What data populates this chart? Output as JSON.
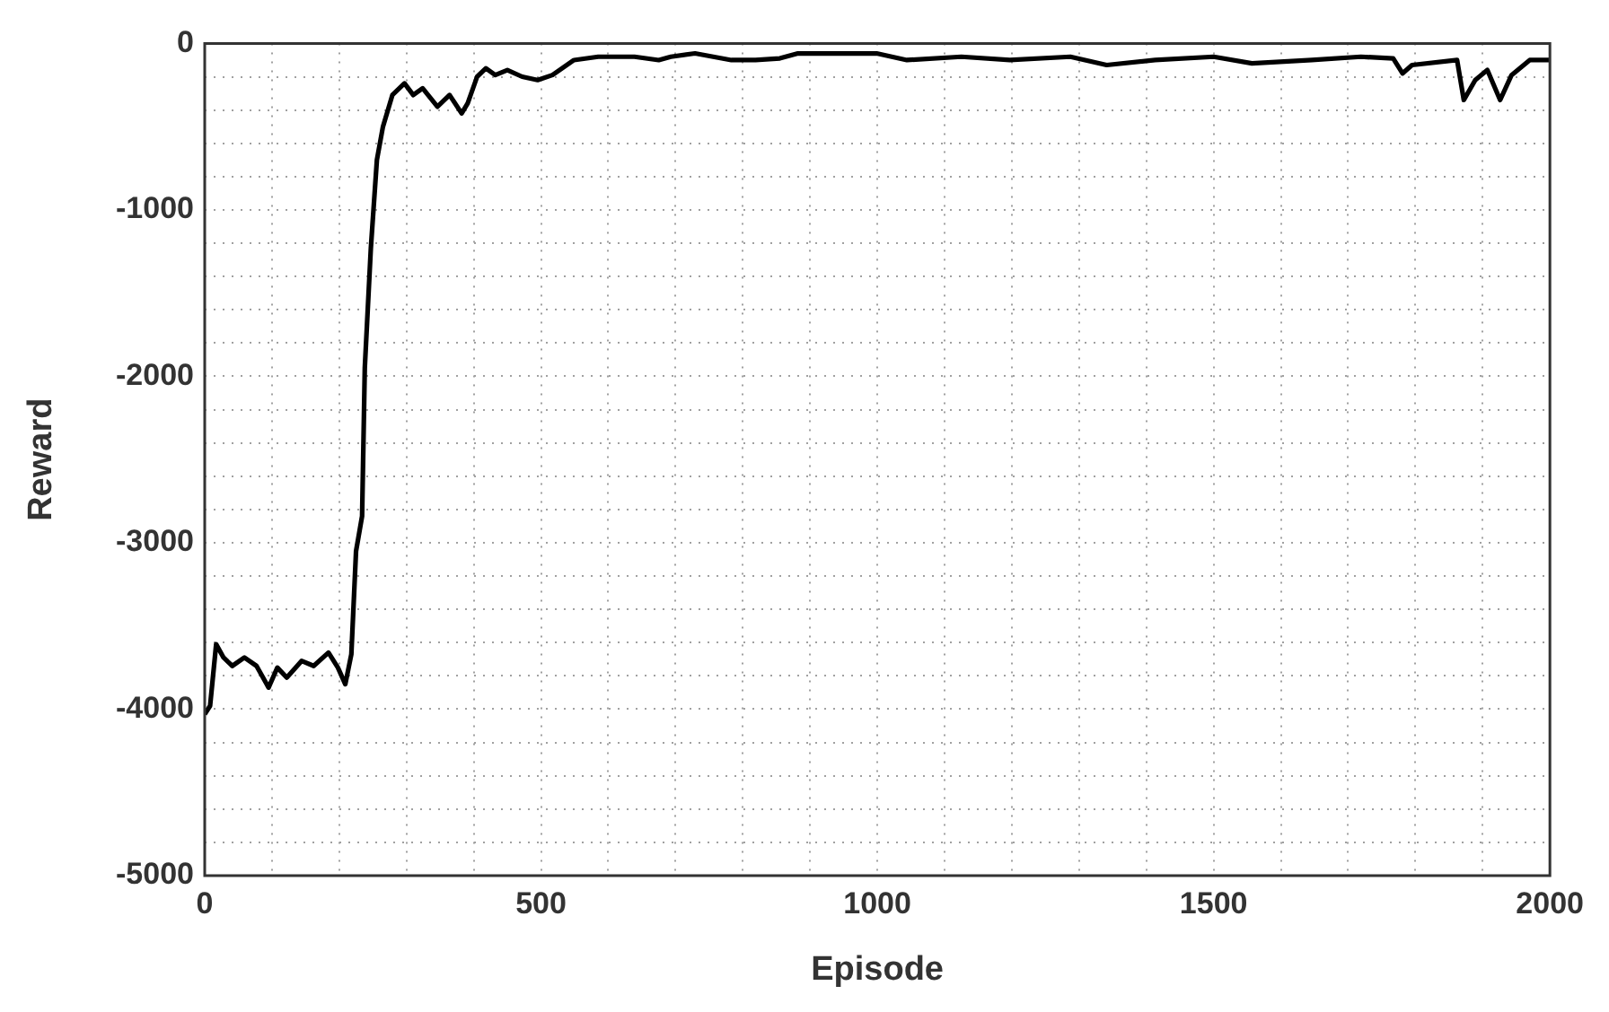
{
  "chart_data": {
    "type": "line",
    "xlabel": "Episode",
    "ylabel": "Reward",
    "x": [
      0,
      8,
      17,
      28,
      41,
      59,
      77,
      95,
      108,
      122,
      144,
      162,
      184,
      198,
      209,
      218,
      225,
      234,
      238,
      247,
      256,
      265,
      279,
      297,
      310,
      324,
      346,
      364,
      382,
      391,
      405,
      418,
      432,
      450,
      472,
      495,
      517,
      549,
      585,
      639,
      675,
      693,
      729,
      783,
      819,
      855,
      882,
      999,
      1044,
      1125,
      1197,
      1287,
      1341,
      1413,
      1500,
      1557,
      1646,
      1719,
      1767,
      1781,
      1795,
      1862,
      1872,
      1889,
      1907,
      1926,
      1943,
      1970,
      2000
    ],
    "series": [
      {
        "color": "#000000",
        "values": [
          -4030,
          -3980,
          -3610,
          -3690,
          -3740,
          -3690,
          -3740,
          -3870,
          -3750,
          -3810,
          -3710,
          -3740,
          -3660,
          -3750,
          -3850,
          -3670,
          -3050,
          -2840,
          -1950,
          -1230,
          -700,
          -500,
          -310,
          -240,
          -310,
          -270,
          -380,
          -310,
          -420,
          -360,
          -200,
          -150,
          -190,
          -160,
          -200,
          -220,
          -190,
          -100,
          -80,
          -80,
          -100,
          -80,
          -60,
          -100,
          -100,
          -90,
          -60,
          -60,
          -100,
          -80,
          -100,
          -80,
          -130,
          -100,
          -80,
          -120,
          -100,
          -80,
          -90,
          -180,
          -130,
          -100,
          -340,
          -220,
          -160,
          -340,
          -190,
          -100,
          -100
        ]
      }
    ],
    "xlim": [
      0,
      2000
    ],
    "xticks": [
      0,
      {
        "value": 100,
        "label": null
      },
      {
        "value": 200,
        "label": null
      },
      {
        "value": 300,
        "label": null
      },
      {
        "value": 400,
        "label": null
      },
      500,
      {
        "value": 600,
        "label": null
      },
      {
        "value": 700,
        "label": null
      },
      {
        "value": 800,
        "label": null
      },
      {
        "value": 900,
        "label": null
      },
      1000,
      {
        "value": 1100,
        "label": null
      },
      {
        "value": 1200,
        "label": null
      },
      {
        "value": 1300,
        "label": null
      },
      {
        "value": 1400,
        "label": null
      },
      1500,
      {
        "value": 1600,
        "label": null
      },
      {
        "value": 1700,
        "label": null
      },
      {
        "value": 1800,
        "label": null
      },
      {
        "value": 1900,
        "label": null
      },
      2000
    ],
    "ylim": [
      -5000,
      0
    ],
    "yticks": [
      -5000,
      {
        "value": -4800,
        "label": null
      },
      {
        "value": -4600,
        "label": null
      },
      {
        "value": -4400,
        "label": null
      },
      {
        "value": -4200,
        "label": null
      },
      -4000,
      {
        "value": -3800,
        "label": null
      },
      {
        "value": -3600,
        "label": null
      },
      {
        "value": -3400,
        "label": null
      },
      {
        "value": -3200,
        "label": null
      },
      -3000,
      {
        "value": -2800,
        "label": null
      },
      {
        "value": -2600,
        "label": null
      },
      {
        "value": -2400,
        "label": null
      },
      {
        "value": -2200,
        "label": null
      },
      -2000,
      {
        "value": -1800,
        "label": null
      },
      {
        "value": -1600,
        "label": null
      },
      {
        "value": -1400,
        "label": null
      },
      {
        "value": -1200,
        "label": null
      },
      -1000,
      {
        "value": -800,
        "label": null
      },
      {
        "value": -600,
        "label": null
      },
      {
        "value": -400,
        "label": null
      },
      {
        "value": -200,
        "label": null
      },
      0
    ],
    "grid": true,
    "legend": false,
    "marker": "none",
    "line_style": "solid"
  }
}
